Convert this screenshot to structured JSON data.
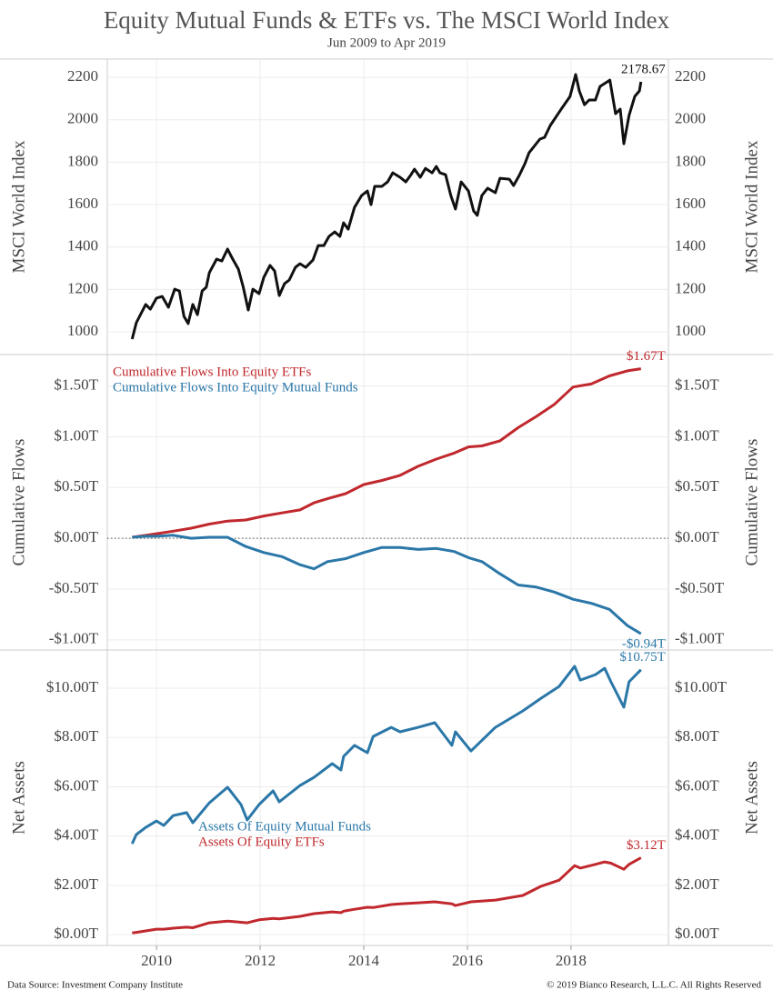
{
  "title": "Equity Mutual Funds & ETFs vs. The MSCI World Index",
  "subtitle": "Jun 2009 to Apr 2019",
  "source": "Data Source: Investment Company Institute",
  "copyright": "© 2019 Bianco Research, L.L.C. All Rights Reserved",
  "chart_data": [
    {
      "type": "line",
      "y_label": "MSCI World Index",
      "xlim": [
        2009.05,
        2019.88
      ],
      "xticks": [
        2010,
        2012,
        2014,
        2016,
        2018
      ],
      "ylim": [
        893,
        2286
      ],
      "yticks": [
        1000,
        1200,
        1400,
        1600,
        1800,
        2000,
        2200
      ],
      "grid": true,
      "x": [
        2009.53,
        2009.61,
        2009.79,
        2009.88,
        2010.0,
        2010.11,
        2010.23,
        2010.35,
        2010.44,
        2010.53,
        2010.61,
        2010.7,
        2010.79,
        2010.88,
        2010.96,
        2011.02,
        2011.16,
        2011.26,
        2011.37,
        2011.47,
        2011.58,
        2011.67,
        2011.77,
        2011.86,
        2011.98,
        2012.07,
        2012.19,
        2012.28,
        2012.37,
        2012.47,
        2012.56,
        2012.68,
        2012.77,
        2012.88,
        2013.02,
        2013.12,
        2013.23,
        2013.33,
        2013.44,
        2013.54,
        2013.61,
        2013.7,
        2013.82,
        2013.96,
        2014.07,
        2014.14,
        2014.21,
        2014.35,
        2014.46,
        2014.56,
        2014.7,
        2014.81,
        2014.91,
        2014.98,
        2015.09,
        2015.19,
        2015.32,
        2015.4,
        2015.47,
        2015.58,
        2015.68,
        2015.77,
        2015.88,
        2016.02,
        2016.12,
        2016.19,
        2016.28,
        2016.39,
        2016.54,
        2016.63,
        2016.81,
        2016.89,
        2017.0,
        2017.11,
        2017.19,
        2017.4,
        2017.49,
        2017.6,
        2017.81,
        2017.98,
        2018.09,
        2018.16,
        2018.26,
        2018.35,
        2018.47,
        2018.56,
        2018.75,
        2018.86,
        2018.95,
        2019.02,
        2019.12,
        2019.23,
        2019.32,
        2019.35
      ],
      "series": [
        {
          "name": "MSCI World Index",
          "color": "#111111",
          "values": [
            966,
            1043,
            1129,
            1107,
            1159,
            1167,
            1116,
            1201,
            1193,
            1073,
            1039,
            1129,
            1081,
            1193,
            1210,
            1279,
            1343,
            1334,
            1390,
            1343,
            1296,
            1214,
            1103,
            1201,
            1180,
            1257,
            1313,
            1287,
            1171,
            1227,
            1244,
            1304,
            1321,
            1304,
            1339,
            1407,
            1407,
            1450,
            1471,
            1450,
            1514,
            1484,
            1587,
            1643,
            1664,
            1600,
            1686,
            1686,
            1707,
            1750,
            1729,
            1707,
            1741,
            1767,
            1729,
            1771,
            1750,
            1780,
            1750,
            1741,
            1643,
            1579,
            1707,
            1664,
            1570,
            1549,
            1643,
            1677,
            1656,
            1724,
            1720,
            1690,
            1737,
            1793,
            1844,
            1909,
            1917,
            1973,
            2050,
            2110,
            2213,
            2136,
            2071,
            2093,
            2093,
            2157,
            2187,
            2029,
            2050,
            1887,
            2020,
            2110,
            2136,
            2178.67
          ]
        }
      ]
    },
    {
      "type": "line",
      "y_label": "Cumulative Flows",
      "xlim": [
        2009.05,
        2019.88
      ],
      "xticks": [
        2010,
        2012,
        2014,
        2016,
        2018
      ],
      "ylim": [
        -1.1,
        1.81
      ],
      "yticks": [
        {
          "value": -1,
          "label": "-$1.00T"
        },
        {
          "value": -0.5,
          "label": "-$0.50T"
        },
        {
          "value": 0,
          "label": "$0.00T"
        },
        {
          "value": 0.5,
          "label": "$0.50T"
        },
        {
          "value": 1,
          "label": "$1.00T"
        },
        {
          "value": 1.5,
          "label": "$1.50T"
        }
      ],
      "grid": true,
      "zero_line": true,
      "legend": "upper left",
      "x": [
        2009.53,
        2009.79,
        2010.0,
        2010.32,
        2010.67,
        2011.02,
        2011.37,
        2011.72,
        2012.07,
        2012.42,
        2012.77,
        2013.04,
        2013.3,
        2013.65,
        2014.0,
        2014.35,
        2014.7,
        2015.05,
        2015.4,
        2015.75,
        2016.02,
        2016.28,
        2016.63,
        2016.98,
        2017.33,
        2017.68,
        2018.04,
        2018.39,
        2018.74,
        2019.09,
        2019.35
      ],
      "series": [
        {
          "name": "Cumulative Flows Into Equity ETFs",
          "color": "#c0282d",
          "values": [
            0.01,
            0.03,
            0.045,
            0.07,
            0.1,
            0.14,
            0.17,
            0.18,
            0.22,
            0.25,
            0.28,
            0.35,
            0.39,
            0.44,
            0.53,
            0.57,
            0.62,
            0.71,
            0.78,
            0.84,
            0.9,
            0.91,
            0.96,
            1.09,
            1.2,
            1.32,
            1.49,
            1.52,
            1.6,
            1.65,
            1.67
          ],
          "value_labels": [
            null,
            null,
            null,
            null,
            null,
            null,
            null,
            null,
            null,
            null,
            null,
            null,
            null,
            null,
            null,
            null,
            null,
            null,
            null,
            null,
            null,
            null,
            null,
            null,
            null,
            null,
            null,
            null,
            null,
            null,
            "$1.67T"
          ]
        },
        {
          "name": "Cumulative Flows Into Equity Mutual Funds",
          "color": "#2a77a8",
          "values": [
            0.01,
            0.02,
            0.02,
            0.03,
            0.0,
            0.01,
            0.01,
            -0.08,
            -0.14,
            -0.18,
            -0.26,
            -0.3,
            -0.23,
            -0.2,
            -0.14,
            -0.09,
            -0.09,
            -0.11,
            -0.1,
            -0.13,
            -0.19,
            -0.23,
            -0.35,
            -0.46,
            -0.48,
            -0.53,
            -0.6,
            -0.64,
            -0.7,
            -0.86,
            -0.94
          ],
          "value_labels": [
            null,
            null,
            null,
            null,
            null,
            null,
            null,
            null,
            null,
            null,
            null,
            null,
            null,
            null,
            null,
            null,
            null,
            null,
            null,
            null,
            null,
            null,
            null,
            null,
            null,
            null,
            null,
            null,
            null,
            null,
            "-$0.94T"
          ]
        }
      ]
    },
    {
      "type": "line",
      "y_label": "Net Assets",
      "xlim": [
        2009.05,
        2019.88
      ],
      "xticks": [
        2010,
        2012,
        2014,
        2016,
        2018
      ],
      "ylim": [
        -0.44,
        11.55
      ],
      "yticks": [
        {
          "value": 0,
          "label": "$0.00T"
        },
        {
          "value": 2,
          "label": "$2.00T"
        },
        {
          "value": 4,
          "label": "$4.00T"
        },
        {
          "value": 6,
          "label": "$6.00T"
        },
        {
          "value": 8,
          "label": "$8.00T"
        },
        {
          "value": 10,
          "label": "$10.00T"
        }
      ],
      "grid": true,
      "legend": "center",
      "x": [
        2009.53,
        2009.61,
        2009.79,
        2010.0,
        2010.14,
        2010.32,
        2010.58,
        2010.7,
        2011.02,
        2011.37,
        2011.63,
        2011.75,
        2011.98,
        2012.25,
        2012.37,
        2012.77,
        2013.04,
        2013.39,
        2013.56,
        2013.61,
        2013.82,
        2014.07,
        2014.18,
        2014.53,
        2014.7,
        2015.05,
        2015.37,
        2015.7,
        2015.77,
        2016.07,
        2016.54,
        2017.07,
        2017.42,
        2017.77,
        2018.07,
        2018.18,
        2018.47,
        2018.65,
        2018.77,
        2019.02,
        2019.12,
        2019.35
      ],
      "series": [
        {
          "name": "Assets Of Equity Mutual Funds",
          "color": "#2a77a8",
          "values": [
            3.69,
            4.06,
            4.35,
            4.61,
            4.43,
            4.83,
            4.95,
            4.54,
            5.35,
            5.98,
            5.28,
            4.65,
            5.28,
            5.83,
            5.39,
            6.05,
            6.38,
            6.94,
            6.68,
            7.23,
            7.68,
            7.38,
            8.04,
            8.41,
            8.23,
            8.41,
            8.6,
            7.68,
            8.23,
            7.45,
            8.41,
            9.08,
            9.59,
            10.07,
            10.89,
            10.33,
            10.55,
            10.81,
            10.26,
            9.23,
            10.26,
            10.75
          ],
          "value_labels": [
            null,
            null,
            null,
            null,
            null,
            null,
            null,
            null,
            null,
            null,
            null,
            null,
            null,
            null,
            null,
            null,
            null,
            null,
            null,
            null,
            null,
            null,
            null,
            null,
            null,
            null,
            null,
            null,
            null,
            null,
            null,
            null,
            null,
            null,
            null,
            null,
            null,
            null,
            null,
            null,
            null,
            "$10.75T"
          ]
        },
        {
          "name": "Assets Of Equity ETFs",
          "color": "#c0282d",
          "values": [
            0.07,
            0.09,
            0.15,
            0.22,
            0.22,
            0.26,
            0.3,
            0.28,
            0.48,
            0.55,
            0.5,
            0.48,
            0.6,
            0.66,
            0.64,
            0.74,
            0.85,
            0.92,
            0.89,
            0.95,
            1.03,
            1.11,
            1.1,
            1.22,
            1.25,
            1.29,
            1.33,
            1.25,
            1.18,
            1.33,
            1.4,
            1.59,
            1.96,
            2.21,
            2.8,
            2.7,
            2.85,
            2.95,
            2.9,
            2.65,
            2.85,
            3.12
          ],
          "value_labels": [
            null,
            null,
            null,
            null,
            null,
            null,
            null,
            null,
            null,
            null,
            null,
            null,
            null,
            null,
            null,
            null,
            null,
            null,
            null,
            null,
            null,
            null,
            null,
            null,
            null,
            null,
            null,
            null,
            null,
            null,
            null,
            null,
            null,
            null,
            null,
            null,
            null,
            null,
            null,
            null,
            null,
            "$3.12T"
          ]
        }
      ]
    }
  ]
}
